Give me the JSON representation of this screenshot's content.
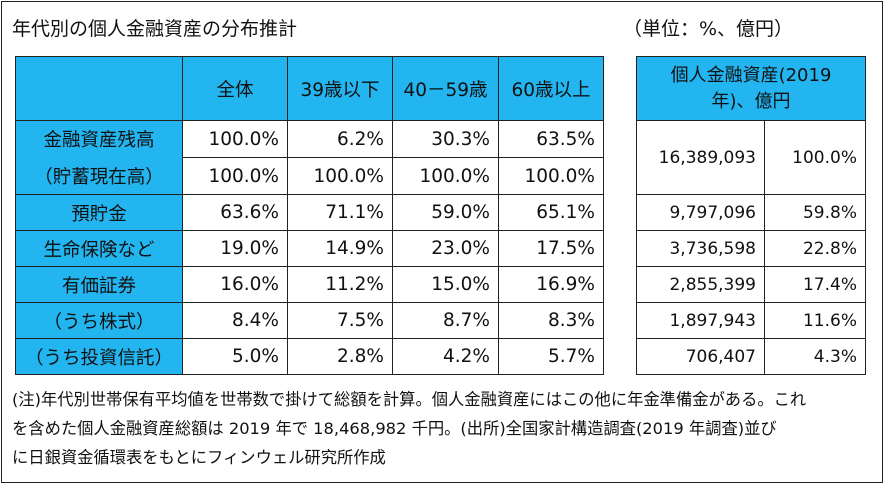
{
  "title": "年代別の個人金融資産の分布推計",
  "unit": "（単位：%、億円）",
  "left_table": {
    "headers": [
      "全体",
      "39歳以下",
      "40－59歳",
      "60歳以上"
    ],
    "rows": [
      {
        "label": "金融資産残高",
        "values": [
          "100.0%",
          "6.2%",
          "30.3%",
          "63.5%"
        ]
      },
      {
        "label": "（貯蓄現在高）",
        "values": [
          "100.0%",
          "100.0%",
          "100.0%",
          "100.0%"
        ]
      },
      {
        "label": "預貯金",
        "values": [
          "63.6%",
          "71.1%",
          "59.0%",
          "65.1%"
        ]
      },
      {
        "label": "生命保険など",
        "values": [
          "19.0%",
          "14.9%",
          "23.0%",
          "17.5%"
        ]
      },
      {
        "label": "有価証券",
        "values": [
          "16.0%",
          "11.2%",
          "15.0%",
          "16.9%"
        ]
      },
      {
        "label": "（うち株式）",
        "values": [
          "8.4%",
          "7.5%",
          "8.7%",
          "8.3%"
        ]
      },
      {
        "label": "（うち投資信託）",
        "values": [
          "5.0%",
          "2.8%",
          "4.2%",
          "5.7%"
        ]
      }
    ]
  },
  "right_table": {
    "header_line1": "個人金融資産(2019",
    "header_line2": "年)、億円",
    "rows": [
      {
        "amount": "16,389,093",
        "pct": "100.0%"
      },
      {
        "amount": "9,797,096",
        "pct": "59.8%"
      },
      {
        "amount": "3,736,598",
        "pct": "22.8%"
      },
      {
        "amount": "2,855,399",
        "pct": "17.4%"
      },
      {
        "amount": "1,897,943",
        "pct": "11.6%"
      },
      {
        "amount": "706,407",
        "pct": "4.3%"
      }
    ]
  },
  "note": {
    "line1": "(注)年代別世帯保有平均値を世帯数で掛けて総額を計算。個人金融資産にはこの他に年金準備金がある。これ",
    "line2": "を含めた個人金融資産総額は 2019 年で 18,468,982 千円。(出所)全国家計構造調査(2019 年調査)並び",
    "line3": "に日銀資金循環表をもとにフィンウェル研究所作成"
  },
  "colors": {
    "header_fill": "#22b5f0",
    "border": "#222222"
  }
}
